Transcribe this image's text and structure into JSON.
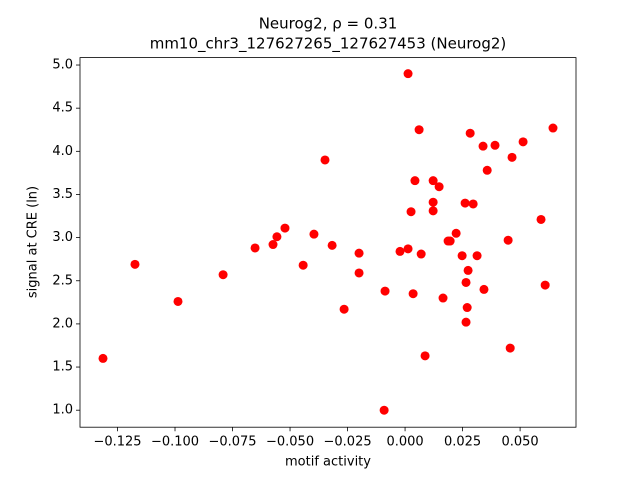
{
  "chart_data": {
    "type": "scatter",
    "title": "Neurog2, ρ = 0.31",
    "subtitle": "mm10_chr3_127627265_127627453 (Neurog2)",
    "x_label": "motif activity",
    "y_label": "signal at CRE (ln)",
    "color": "#ff0000",
    "xlim": [
      -0.1413,
      0.0743
    ],
    "ylim": [
      0.803,
      5.086
    ],
    "xticks": [
      {
        "value": -0.125,
        "label": "−0.125"
      },
      {
        "value": -0.1,
        "label": "−0.100"
      },
      {
        "value": -0.075,
        "label": "−0.075"
      },
      {
        "value": -0.05,
        "label": "−0.050"
      },
      {
        "value": -0.025,
        "label": "−0.025"
      },
      {
        "value": 0,
        "label": "0.000"
      },
      {
        "value": 0.025,
        "label": "0.025"
      },
      {
        "value": 0.05,
        "label": "0.050"
      }
    ],
    "yticks": [
      {
        "value": 1,
        "label": "1.0"
      },
      {
        "value": 1.5,
        "label": "1.5"
      },
      {
        "value": 2,
        "label": "2.0"
      },
      {
        "value": 2.5,
        "label": "2.5"
      },
      {
        "value": 3,
        "label": "3.0"
      },
      {
        "value": 3.5,
        "label": "3.5"
      },
      {
        "value": 4,
        "label": "4.0"
      },
      {
        "value": 4.5,
        "label": "4.5"
      },
      {
        "value": 5,
        "label": "5.0"
      }
    ],
    "x": [
      -0.1313,
      -0.1174,
      -0.0987,
      -0.0791,
      -0.0652,
      -0.0574,
      -0.0557,
      -0.0522,
      -0.0443,
      -0.0396,
      -0.0348,
      -0.0317,
      -0.0265,
      -0.02,
      -0.02,
      -0.0091,
      -0.0087,
      -0.0022,
      0.0013,
      0.0013,
      0.0026,
      0.0035,
      0.0043,
      0.0061,
      0.007,
      0.0087,
      0.0122,
      0.0122,
      0.0122,
      0.0148,
      0.0165,
      0.0187,
      0.0196,
      0.0222,
      0.0248,
      0.0261,
      0.0265,
      0.0265,
      0.027,
      0.0274,
      0.0283,
      0.0296,
      0.0313,
      0.0339,
      0.0343,
      0.0357,
      0.0391,
      0.0448,
      0.0457,
      0.0465,
      0.0513,
      0.0591,
      0.0609,
      0.0643
    ],
    "values": [
      1.6,
      2.69,
      2.26,
      2.57,
      2.88,
      2.92,
      3.01,
      3.11,
      2.68,
      3.04,
      3.9,
      2.91,
      2.17,
      2.82,
      2.59,
      1.0,
      2.38,
      2.84,
      2.87,
      4.9,
      3.3,
      2.35,
      3.66,
      4.25,
      2.81,
      1.63,
      3.66,
      3.41,
      3.31,
      3.59,
      2.3,
      2.96,
      2.96,
      3.05,
      2.79,
      3.4,
      2.48,
      2.02,
      2.19,
      2.62,
      4.21,
      3.39,
      2.79,
      4.06,
      2.4,
      3.78,
      4.07,
      2.97,
      1.72,
      3.93,
      4.11,
      3.21,
      2.45,
      4.27
    ]
  }
}
